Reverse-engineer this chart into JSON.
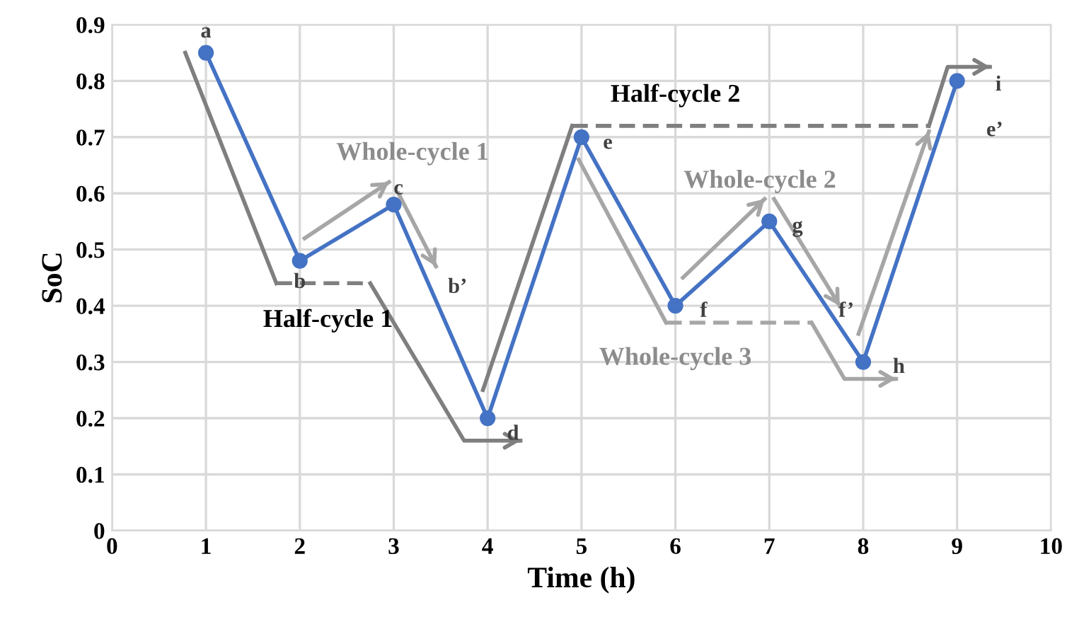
{
  "chart_data": {
    "type": "line",
    "xlabel": "Time (h)",
    "ylabel": "SoC",
    "xlim": [
      0,
      10
    ],
    "xticks": [
      0,
      1,
      2,
      3,
      4,
      5,
      6,
      7,
      8,
      9,
      10
    ],
    "ylim": [
      0,
      0.9
    ],
    "yticks": [
      0,
      0.1,
      0.2,
      0.3,
      0.4,
      0.5,
      0.6,
      0.7,
      0.8,
      0.9
    ],
    "grid": true,
    "line_style": "solid",
    "series": [
      {
        "color": "#4472c4",
        "marker": "circle",
        "x": [
          1,
          2,
          3,
          4,
          5,
          6,
          7,
          8,
          9
        ],
        "values": [
          0.85,
          0.48,
          0.58,
          0.2,
          0.7,
          0.4,
          0.55,
          0.3,
          0.8
        ]
      },
      {
        "color": "#7f7f7f",
        "x": [
          0.78,
          1.75
        ],
        "values": [
          0.85,
          0.44
        ]
      },
      {
        "color": "#7f7f7f",
        "line_style": "dashed",
        "x": [
          1.75,
          2.75
        ],
        "values": [
          0.44,
          0.44
        ]
      },
      {
        "color": "#7f7f7f",
        "x": [
          2.75,
          3.75,
          4.35
        ],
        "values": [
          0.44,
          0.16,
          0.16
        ]
      },
      {
        "color": "#a6a6a6",
        "x": [
          2.05,
          2.95
        ],
        "values": [
          0.52,
          0.62
        ]
      },
      {
        "color": "#a6a6a6",
        "x": [
          3.05,
          3.45
        ],
        "values": [
          0.6,
          0.47
        ]
      },
      {
        "color": "#7f7f7f",
        "x": [
          3.95,
          4.9
        ],
        "values": [
          0.25,
          0.72
        ]
      },
      {
        "color": "#7f7f7f",
        "line_style": "dashed",
        "x": [
          4.9,
          8.7
        ],
        "values": [
          0.72,
          0.72
        ]
      },
      {
        "color": "#7f7f7f",
        "x": [
          8.7,
          8.9,
          9.35
        ],
        "values": [
          0.72,
          0.825,
          0.825
        ]
      },
      {
        "color": "#a6a6a6",
        "x": [
          4.97,
          5.9
        ],
        "values": [
          0.66,
          0.37
        ]
      },
      {
        "color": "#a6a6a6",
        "line_style": "dashed",
        "x": [
          5.9,
          7.45
        ],
        "values": [
          0.37,
          0.37
        ]
      },
      {
        "color": "#a6a6a6",
        "x": [
          7.45,
          7.8,
          8.35
        ],
        "values": [
          0.37,
          0.27,
          0.27
        ]
      },
      {
        "color": "#a6a6a6",
        "x": [
          6.08,
          6.95
        ],
        "values": [
          0.45,
          0.59
        ]
      },
      {
        "color": "#a6a6a6",
        "x": [
          7.05,
          7.75
        ],
        "values": [
          0.59,
          0.4
        ]
      },
      {
        "color": "#a6a6a6",
        "x": [
          7.95,
          8.7
        ],
        "values": [
          0.35,
          0.71
        ]
      }
    ],
    "annotations": [
      "a",
      "b",
      "c",
      "b’",
      "d",
      "e",
      "f",
      "g",
      "f’",
      "h",
      "i",
      "e’",
      "Half-cycle 1",
      "Whole-cycle 1",
      "Half-cycle 2",
      "Whole-cycle 2",
      "Whole-cycle 3"
    ]
  }
}
